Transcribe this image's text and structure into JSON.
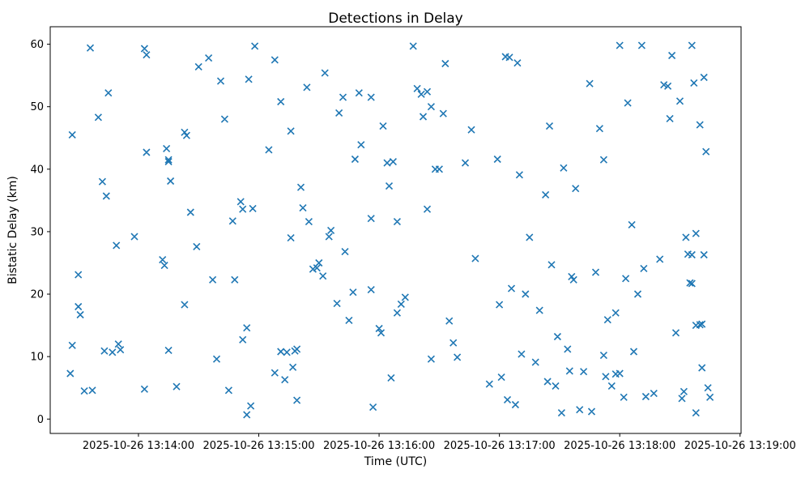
{
  "chart_data": {
    "type": "scatter",
    "title": "Detections in Delay",
    "xlabel": "Time (UTC)",
    "ylabel": "Bistatic Delay (km)",
    "marker": "x",
    "marker_color": "#1f77b4",
    "grid": false,
    "legend": null,
    "x_unit": "seconds after 2025-10-26 13:13:00 UTC",
    "x_ticks_seconds": [
      60,
      120,
      180,
      240,
      300,
      360
    ],
    "x_tick_labels": [
      "2025-10-26 13:14:00",
      "2025-10-26 13:15:00",
      "2025-10-26 13:16:00",
      "2025-10-26 13:17:00",
      "2025-10-26 13:18:00",
      "2025-10-26 13:19:00"
    ],
    "y_ticks": [
      0,
      10,
      20,
      30,
      40,
      50,
      60
    ],
    "xlim_seconds": [
      16,
      360.5
    ],
    "ylim": [
      -2.3,
      62.8
    ],
    "points": [
      [
        27,
        45.5
      ],
      [
        30,
        23.1
      ],
      [
        30,
        18.0
      ],
      [
        31,
        16.7
      ],
      [
        27,
        11.8
      ],
      [
        26,
        7.3
      ],
      [
        33,
        4.5
      ],
      [
        37,
        4.6
      ],
      [
        36,
        59.4
      ],
      [
        40,
        48.3
      ],
      [
        42,
        38.0
      ],
      [
        44,
        35.7
      ],
      [
        45,
        52.2
      ],
      [
        43,
        10.9
      ],
      [
        47,
        10.7
      ],
      [
        49,
        27.8
      ],
      [
        50,
        12.0
      ],
      [
        51,
        11.1
      ],
      [
        58,
        29.2
      ],
      [
        63,
        59.3
      ],
      [
        64,
        58.3
      ],
      [
        64,
        42.7
      ],
      [
        63,
        4.8
      ],
      [
        72,
        25.5
      ],
      [
        73,
        24.6
      ],
      [
        74,
        43.3
      ],
      [
        75,
        41.5
      ],
      [
        75,
        41.2
      ],
      [
        76,
        38.1
      ],
      [
        75,
        11.0
      ],
      [
        79,
        5.2
      ],
      [
        83,
        45.9
      ],
      [
        84,
        45.4
      ],
      [
        83,
        18.3
      ],
      [
        86,
        33.1
      ],
      [
        89,
        27.6
      ],
      [
        90,
        56.4
      ],
      [
        95,
        57.8
      ],
      [
        97,
        22.3
      ],
      [
        99,
        9.6
      ],
      [
        101,
        54.1
      ],
      [
        103,
        48.0
      ],
      [
        105,
        4.6
      ],
      [
        107,
        31.7
      ],
      [
        108,
        22.3
      ],
      [
        111,
        34.8
      ],
      [
        112,
        33.6
      ],
      [
        112,
        12.7
      ],
      [
        114,
        14.6
      ],
      [
        114,
        0.7
      ],
      [
        116,
        2.1
      ],
      [
        115,
        54.4
      ],
      [
        118,
        59.7
      ],
      [
        117,
        33.7
      ],
      [
        125,
        43.1
      ],
      [
        128,
        57.5
      ],
      [
        128,
        7.4
      ],
      [
        131,
        50.8
      ],
      [
        131,
        10.8
      ],
      [
        133,
        6.3
      ],
      [
        134,
        10.7
      ],
      [
        136,
        29.0
      ],
      [
        136,
        46.1
      ],
      [
        137,
        8.3
      ],
      [
        138,
        10.9
      ],
      [
        139,
        11.2
      ],
      [
        139,
        3.0
      ],
      [
        141,
        37.1
      ],
      [
        142,
        33.8
      ],
      [
        144,
        53.1
      ],
      [
        145,
        31.6
      ],
      [
        147,
        24.0
      ],
      [
        149,
        24.2
      ],
      [
        150,
        25.0
      ],
      [
        152,
        22.9
      ],
      [
        153,
        55.4
      ],
      [
        155,
        29.2
      ],
      [
        156,
        30.2
      ],
      [
        159,
        18.5
      ],
      [
        160,
        49.0
      ],
      [
        162,
        51.5
      ],
      [
        163,
        26.8
      ],
      [
        165,
        15.8
      ],
      [
        167,
        20.3
      ],
      [
        168,
        41.6
      ],
      [
        170,
        52.2
      ],
      [
        171,
        43.9
      ],
      [
        176,
        51.5
      ],
      [
        176,
        20.7
      ],
      [
        176,
        32.1
      ],
      [
        177,
        1.9
      ],
      [
        180,
        14.5
      ],
      [
        181,
        13.8
      ],
      [
        182,
        46.9
      ],
      [
        184,
        41.0
      ],
      [
        185,
        37.3
      ],
      [
        186,
        6.6
      ],
      [
        187,
        41.2
      ],
      [
        189,
        31.6
      ],
      [
        189,
        17.0
      ],
      [
        191,
        18.4
      ],
      [
        193,
        19.5
      ],
      [
        197,
        59.7
      ],
      [
        199,
        52.9
      ],
      [
        201,
        52.0
      ],
      [
        202,
        48.4
      ],
      [
        204,
        52.4
      ],
      [
        206,
        50.0
      ],
      [
        204,
        33.6
      ],
      [
        206,
        9.6
      ],
      [
        208,
        40.0
      ],
      [
        210,
        40.0
      ],
      [
        212,
        48.9
      ],
      [
        213,
        56.9
      ],
      [
        215,
        15.7
      ],
      [
        217,
        12.2
      ],
      [
        219,
        9.9
      ],
      [
        223,
        41.0
      ],
      [
        226,
        46.3
      ],
      [
        228,
        25.7
      ],
      [
        235,
        5.6
      ],
      [
        239,
        41.6
      ],
      [
        240,
        18.3
      ],
      [
        241,
        6.7
      ],
      [
        243,
        58.0
      ],
      [
        245,
        57.9
      ],
      [
        244,
        3.1
      ],
      [
        246,
        20.9
      ],
      [
        248,
        2.3
      ],
      [
        249,
        57.0
      ],
      [
        250,
        39.1
      ],
      [
        251,
        10.4
      ],
      [
        253,
        20.0
      ],
      [
        255,
        29.1
      ],
      [
        258,
        9.1
      ],
      [
        260,
        17.4
      ],
      [
        263,
        35.9
      ],
      [
        264,
        6.0
      ],
      [
        265,
        46.9
      ],
      [
        266,
        24.7
      ],
      [
        268,
        5.3
      ],
      [
        269,
        13.2
      ],
      [
        271,
        1.0
      ],
      [
        272,
        40.2
      ],
      [
        274,
        11.2
      ],
      [
        275,
        7.7
      ],
      [
        276,
        22.8
      ],
      [
        277,
        22.3
      ],
      [
        278,
        36.9
      ],
      [
        280,
        1.5
      ],
      [
        282,
        7.6
      ],
      [
        285,
        53.7
      ],
      [
        286,
        1.2
      ],
      [
        288,
        23.5
      ],
      [
        290,
        46.5
      ],
      [
        292,
        41.5
      ],
      [
        292,
        10.2
      ],
      [
        293,
        6.8
      ],
      [
        294,
        15.9
      ],
      [
        296,
        5.3
      ],
      [
        298,
        17.0
      ],
      [
        298,
        7.2
      ],
      [
        300,
        7.3
      ],
      [
        300,
        59.8
      ],
      [
        302,
        3.5
      ],
      [
        303,
        22.5
      ],
      [
        304,
        50.6
      ],
      [
        306,
        31.1
      ],
      [
        307,
        10.8
      ],
      [
        309,
        20.0
      ],
      [
        311,
        59.8
      ],
      [
        312,
        24.1
      ],
      [
        313,
        3.6
      ],
      [
        317,
        4.1
      ],
      [
        320,
        25.6
      ],
      [
        322,
        53.5
      ],
      [
        324,
        53.3
      ],
      [
        325,
        48.1
      ],
      [
        326,
        58.2
      ],
      [
        328,
        13.8
      ],
      [
        330,
        50.9
      ],
      [
        331,
        3.3
      ],
      [
        332,
        4.4
      ],
      [
        333,
        29.1
      ],
      [
        334,
        26.4
      ],
      [
        336,
        26.3
      ],
      [
        335,
        21.8
      ],
      [
        336,
        21.7
      ],
      [
        336,
        59.8
      ],
      [
        337,
        53.8
      ],
      [
        338,
        29.7
      ],
      [
        338,
        15.0
      ],
      [
        340,
        15.1
      ],
      [
        341,
        15.2
      ],
      [
        338,
        1.0
      ],
      [
        340,
        47.1
      ],
      [
        341,
        8.2
      ],
      [
        342,
        54.7
      ],
      [
        342,
        26.3
      ],
      [
        343,
        42.8
      ],
      [
        344,
        5.0
      ],
      [
        345,
        3.5
      ]
    ]
  }
}
